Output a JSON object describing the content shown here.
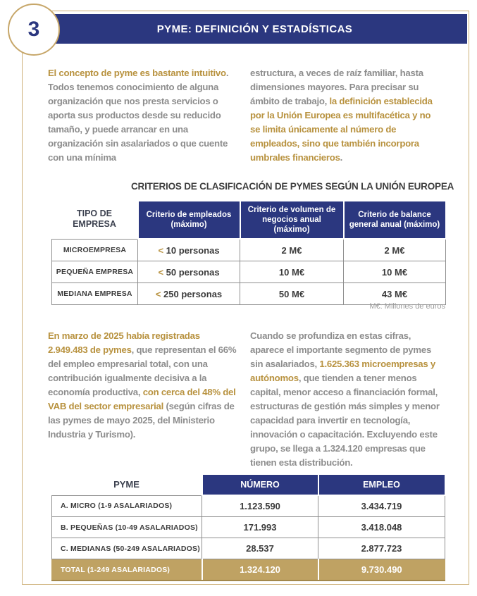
{
  "colors": {
    "navy": "#2b377f",
    "gold_text": "#b8923f",
    "gold_row_bg": "#bfa263",
    "frame_gold": "#cdb078",
    "body_gray": "#8d8d8d",
    "dark_text": "#3b3b3b"
  },
  "header": {
    "page_number": "3",
    "title": "PYME: DEFINICIÓN Y ESTADÍSTICAS"
  },
  "paragraphs": {
    "intro_left": [
      {
        "t": "El concepto de pyme es bastante intuitivo",
        "s": "gold"
      },
      {
        "t": ". Todos tenemos conocimiento de alguna organización que nos presta servicios o aporta sus productos desde su reducido tamaño, y puede arrancar en una organización sin asalariados o que cuente con una mínima",
        "s": "gray"
      }
    ],
    "intro_right": [
      {
        "t": "estructura, a veces de raíz familiar, hasta dimensiones mayores. Para precisar su ámbito de trabajo, ",
        "s": "gray"
      },
      {
        "t": "la definición establecida por la Unión Europea es multifacética y no se limita únicamente al número de empleados, sino que también incorpora umbrales financieros",
        "s": "gold"
      },
      {
        "t": ".",
        "s": "gray"
      }
    ],
    "stats_left": [
      {
        "t": "En marzo de 2025 había registradas 2.949.483 de pymes",
        "s": "gold"
      },
      {
        "t": ", que representan el 66% del empleo empresarial total, con una contribución igualmente decisiva a la economía productiva, ",
        "s": "gray"
      },
      {
        "t": "con cerca del 48% del VAB del sector empresarial",
        "s": "gold"
      },
      {
        "t": " (según cifras de las pymes de mayo 2025, del Ministerio Industria y Turismo).",
        "s": "gray"
      }
    ],
    "stats_right": [
      {
        "t": "Cuando se profundiza en estas cifras, aparece el importante segmento de pymes sin asalariados, ",
        "s": "gray"
      },
      {
        "t": "1.625.363 microempresas y autónomos",
        "s": "gold"
      },
      {
        "t": ", que tienden a tener menos capital, menor acceso a financiación formal, estructuras de gestión más simples y menor capacidad para invertir en tecnología, innovación o capacitación. Excluyendo este grupo, se llega a 1.324.120 empresas que tienen esta distribución.",
        "s": "gray"
      }
    ]
  },
  "table1": {
    "title": "CRITERIOS DE CLASIFICACIÓN DE PYMES SEGÚN LA UNIÓN EUROPEA",
    "corner_header": "TIPO DE EMPRESA",
    "col_headers": [
      "Criterio de empleados (máximo)",
      "Criterio de volumen de negocios anual (máximo)",
      "Criterio de balance general anual (máximo)"
    ],
    "rows": [
      {
        "label": "MICROEMPRESA",
        "lt": "<",
        "employees": "10 personas",
        "volume": "2 M€",
        "balance": "2 M€"
      },
      {
        "label": "PEQUEÑA EMPRESA",
        "lt": "<",
        "employees": "50 personas",
        "volume": "10 M€",
        "balance": "10 M€"
      },
      {
        "label": "MEDIANA EMPRESA",
        "lt": "<",
        "employees": "250 personas",
        "volume": "50 M€",
        "balance": "43 M€"
      }
    ],
    "note": "M€: Millones de euros"
  },
  "table2": {
    "corner_header": "PYME",
    "col_headers": [
      "NÚMERO",
      "EMPLEO"
    ],
    "rows": [
      {
        "label": "A. MICRO (1-9 ASALARIADOS)",
        "numero": "1.123.590",
        "empleo": "3.434.719"
      },
      {
        "label": "B. PEQUEÑAS (10-49 ASALARIADOS)",
        "numero": "171.993",
        "empleo": "3.418.048"
      },
      {
        "label": "C. MEDIANAS (50-249 ASALARIADOS)",
        "numero": "28.537",
        "empleo": "2.877.723"
      },
      {
        "label": "TOTAL (1-249 ASALARIADOS)",
        "numero": "1.324.120",
        "empleo": "9.730.490"
      }
    ]
  }
}
